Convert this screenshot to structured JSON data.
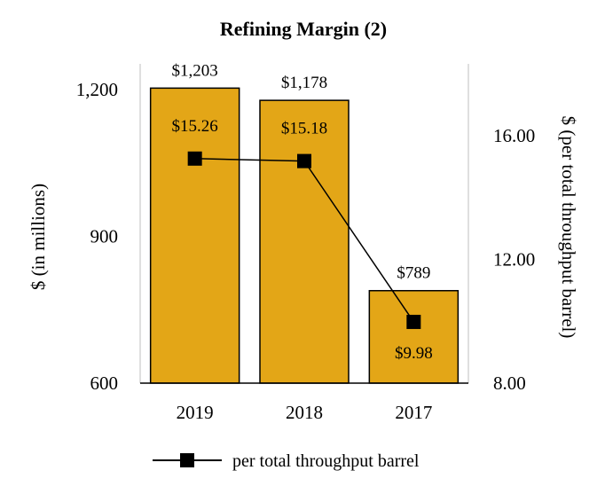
{
  "chart_data": {
    "type": "bar",
    "title": "Refining Margin (2)",
    "categories": [
      "2019",
      "2018",
      "2017"
    ],
    "series": [
      {
        "axis": "left",
        "kind": "bar",
        "values": [
          1203,
          1178,
          789
        ],
        "labels": [
          "$1,203",
          "$1,178",
          "$789"
        ],
        "color": "#E3A617"
      },
      {
        "name": "per total throughput barrel",
        "axis": "right",
        "kind": "line",
        "values": [
          15.26,
          15.18,
          9.98
        ],
        "labels": [
          "$15.26",
          "$15.18",
          "$9.98"
        ],
        "color": "#000000"
      }
    ],
    "ylabel": "$ (in millions)",
    "ylim": [
      600,
      1200
    ],
    "yticks": [
      "600",
      "900",
      "1,200"
    ],
    "y2label": "$ (per total throughput barrel)",
    "y2lim": [
      8.0,
      16.0
    ],
    "y2ticks": [
      "8.00",
      "12.00",
      "16.00"
    ],
    "legend": "bottom",
    "grid": false
  }
}
